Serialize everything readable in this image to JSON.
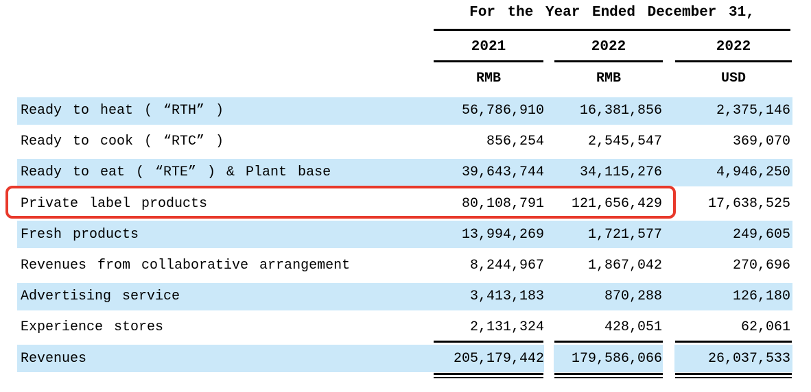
{
  "table": {
    "title": "For the Year Ended December 31,",
    "columns": [
      {
        "year": "2021",
        "currency": "RMB"
      },
      {
        "year": "2022",
        "currency": "RMB"
      },
      {
        "year": "2022",
        "currency": "USD"
      }
    ],
    "rows": [
      {
        "label": "Ready to heat ( “RTH” )",
        "values": [
          "56,786,910",
          "16,381,856",
          "2,375,146"
        ],
        "shaded": true,
        "highlighted": false
      },
      {
        "label": "Ready to cook ( “RTC” )",
        "values": [
          "856,254",
          "2,545,547",
          "369,070"
        ],
        "shaded": false,
        "highlighted": false
      },
      {
        "label": "Ready to eat ( “RTE” ) & Plant base",
        "values": [
          "39,643,744",
          "34,115,276",
          "4,946,250"
        ],
        "shaded": true,
        "highlighted": false
      },
      {
        "label": "Private label products",
        "values": [
          "80,108,791",
          "121,656,429",
          "17,638,525"
        ],
        "shaded": false,
        "highlighted": true
      },
      {
        "label": "Fresh products",
        "values": [
          "13,994,269",
          "1,721,577",
          "249,605"
        ],
        "shaded": true,
        "highlighted": false
      },
      {
        "label": "Revenues from collaborative arrangement",
        "values": [
          "8,244,967",
          "1,867,042",
          "270,696"
        ],
        "shaded": false,
        "highlighted": false
      },
      {
        "label": "Advertising service",
        "values": [
          "3,413,183",
          "870,288",
          "126,180"
        ],
        "shaded": true,
        "highlighted": false
      },
      {
        "label": "Experience stores",
        "values": [
          "2,131,324",
          "428,051",
          "62,061"
        ],
        "shaded": false,
        "highlighted": false
      },
      {
        "label": "Revenues",
        "values": [
          "205,179,442",
          "179,586,066",
          "26,037,533"
        ],
        "shaded": true,
        "highlighted": false,
        "is_total": true
      }
    ]
  },
  "colors": {
    "row_shade": "#cbe8f9",
    "highlight_red": "#e8392b",
    "text": "#000000",
    "rule": "#000000"
  }
}
